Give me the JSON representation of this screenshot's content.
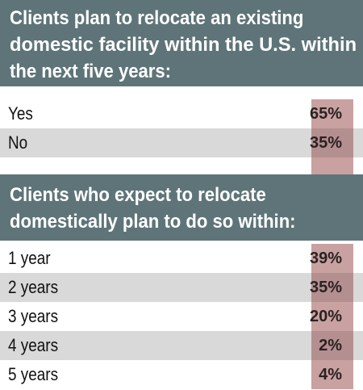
{
  "chart_data": [
    {
      "type": "table",
      "title": "Clients plan to relocate an existing domestic facility within the U.S. within the next five years:",
      "title_lines": [
        "Clients plan to relocate an existing",
        "domestic facility within the U.S. within",
        "the next five years:"
      ],
      "categories": [
        "Yes",
        "No"
      ],
      "values": [
        "65%",
        "35%"
      ]
    },
    {
      "type": "table",
      "title": "Clients who expect to relocate domestically plan to do so within:",
      "title_lines": [
        "Clients who expect to relocate",
        "domestically plan to do so within:"
      ],
      "categories": [
        "1 year",
        "2 years",
        "3 years",
        "4 years",
        "5 years"
      ],
      "values": [
        "39%",
        "35%",
        "20%",
        "2%",
        "4%"
      ]
    }
  ],
  "colors": {
    "header_bg": "#5e7479",
    "header_text": "#ffffff",
    "row_shade": "#d9d9d9",
    "value_cell": "#c9a1a1",
    "value_cell_shaded": "#b48f90"
  }
}
